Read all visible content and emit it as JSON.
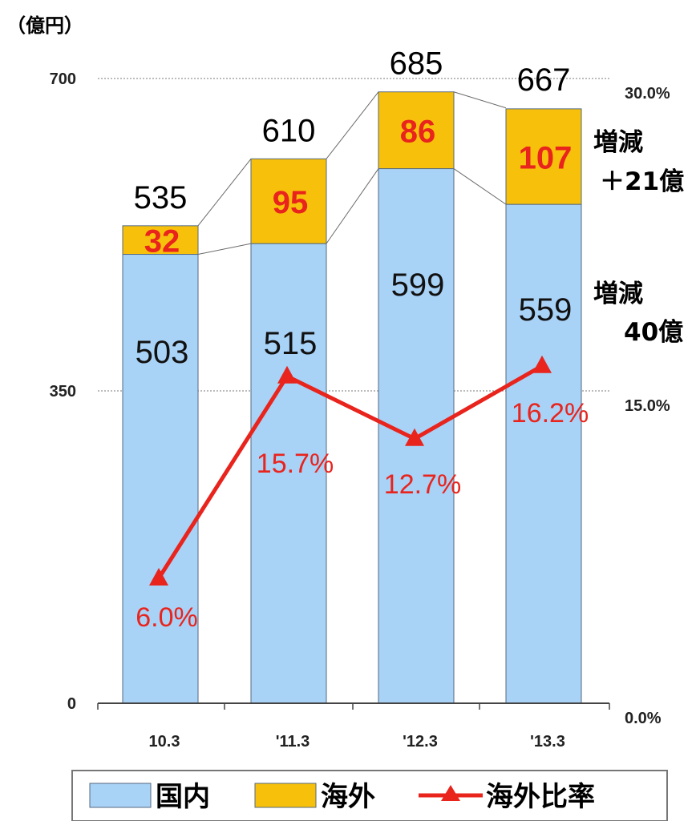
{
  "chart_data": {
    "type": "bar",
    "stacked": true,
    "unit_label": "（億円）",
    "categories": [
      "10.3",
      "'11.3",
      "'12.3",
      "'13.3"
    ],
    "series": [
      {
        "name": "国内",
        "values": [
          503,
          515,
          599,
          559
        ],
        "color": "#a9d2f7"
      },
      {
        "name": "海外",
        "values": [
          32,
          95,
          86,
          107
        ],
        "color": "#f7c10b"
      }
    ],
    "totals": [
      535,
      610,
      685,
      667
    ],
    "line_series": {
      "name": "海外比率",
      "values": [
        6.0,
        15.7,
        12.7,
        16.2
      ],
      "labels": [
        "6.0%",
        "15.7%",
        "12.7%",
        "16.2%"
      ],
      "color": "#e8241d"
    },
    "y_left": {
      "ticks": [
        0,
        350,
        700
      ],
      "ylim": [
        0,
        700
      ]
    },
    "y_right": {
      "ticks": [
        "0.0%",
        "15.0%",
        "30.0%"
      ],
      "ylim": [
        0,
        30
      ]
    },
    "annotations": [
      {
        "line1": "増減",
        "line2": "＋21億"
      },
      {
        "line1": "増減",
        "line2": "40億"
      }
    ],
    "grid": true,
    "legend": {
      "placement": "bottom",
      "entries": [
        "国内",
        "海外",
        "海外比率"
      ]
    }
  }
}
